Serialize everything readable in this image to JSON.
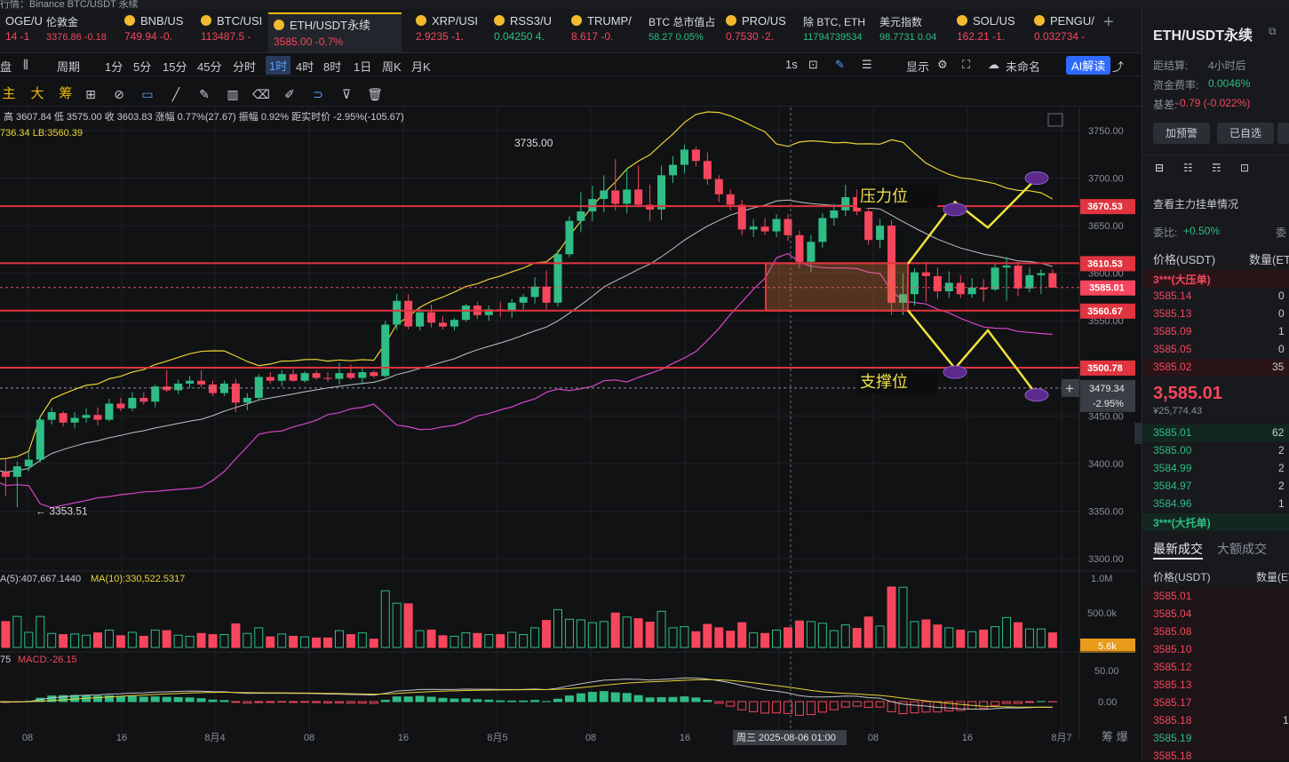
{
  "top_message": "行情：Binance BTC/USDT 永续",
  "ticker": [
    {
      "name": "OGE/U",
      "price": "14 -1",
      "dir": "dn",
      "x": 0,
      "w": 40,
      "icon": false
    },
    {
      "name": "伦敦金",
      "price": "3376.86 -0.18",
      "dir": "dn",
      "x": 46,
      "w": 80,
      "icon": false,
      "small": true
    },
    {
      "name": "BNB/US",
      "price": "749.94 -0.",
      "dir": "dn",
      "x": 134,
      "w": 80,
      "icon": true
    },
    {
      "name": "BTC/USI",
      "price": "113487.5 -",
      "dir": "dn",
      "x": 220,
      "w": 80,
      "icon": true
    },
    {
      "name": "ETH/USDT永续",
      "price": "3585.00 -0.7%",
      "dir": "dn",
      "x": 302,
      "w": 150,
      "icon": true,
      "active": true
    },
    {
      "name": "XRP/USI",
      "price": "2.9235 -1.",
      "dir": "dn",
      "x": 462,
      "w": 80,
      "icon": true
    },
    {
      "name": "RSS3/U",
      "price": "0.04250 4.",
      "dir": "up",
      "x": 550,
      "w": 80,
      "icon": true
    },
    {
      "name": "TRUMP/",
      "price": "8.617 -0.",
      "dir": "dn",
      "x": 637,
      "w": 80,
      "icon": true
    },
    {
      "name": "BTC 总市值占",
      "price": "58.27 0.05%",
      "dir": "up",
      "x": 724,
      "w": 80,
      "icon": false,
      "small": true
    },
    {
      "name": "PRO/US",
      "price": "0.7530 -2.",
      "dir": "dn",
      "x": 811,
      "w": 80,
      "icon": true
    },
    {
      "name": "除 BTC, ETH",
      "price": "11794739534",
      "dir": "up",
      "x": 898,
      "w": 80,
      "icon": false,
      "small": true
    },
    {
      "name": "美元指数",
      "price": "98.7731 0.04",
      "dir": "up",
      "x": 984,
      "w": 80,
      "icon": false,
      "small": true
    },
    {
      "name": "SOL/US",
      "price": "162.21 -1.",
      "dir": "dn",
      "x": 1071,
      "w": 80,
      "icon": true
    },
    {
      "name": "PENGU/",
      "price": "0.032734 -",
      "dir": "dn",
      "x": 1158,
      "w": 80,
      "icon": true
    }
  ],
  "toolbar": {
    "items": [
      "盘",
      "周期",
      "1分",
      "5分",
      "15分",
      "45分",
      "分时",
      "1时",
      "4时",
      "8时",
      "1日",
      "周K",
      "月K"
    ],
    "selected": "1时",
    "right": [
      "1s",
      "显示",
      "未命名",
      "AI解读"
    ]
  },
  "toolbar2": {
    "labels": [
      "主",
      "大",
      "筹"
    ]
  },
  "info_line": "高 3607.84  低 3575.00  收 3603.83  涨幅 0.77%(27.67)  振幅 0.92%  距实时价 -2.95%(-105.67)",
  "bb_line": "736.34  LB:3560.39",
  "vol_line": {
    "ma5": "A(5):407,667.1440",
    "ma10": "MA(10):330,522.5317"
  },
  "macd_line": {
    "left": "75",
    "macd": "MACD:-26.15"
  },
  "chart_data": {
    "type": "candlestick",
    "symbol": "ETH/USDT永续",
    "interval": "1时",
    "ylim": [
      3268,
      3770
    ],
    "yticks": [
      3300,
      3350,
      3400,
      3450,
      3500,
      3550,
      3600,
      3650,
      3700,
      3750
    ],
    "ytick_labels": [
      "3300.00",
      "3350.00",
      "3400.00",
      "3450.00",
      "3500.00",
      "3550.00",
      "3600.00",
      "3650.00",
      "3700.00",
      "3750.00"
    ],
    "x_labels": [
      "08",
      "16",
      "8月4",
      "08",
      "16",
      "8月5",
      "08",
      "16",
      "周三 2025-08-06 01:00",
      "08",
      "16",
      "8月7"
    ],
    "hlines": [
      {
        "value": 3670.53,
        "label": "3670.53"
      },
      {
        "value": 3610.53,
        "label": "3610.53"
      },
      {
        "value": 3560.67,
        "label": "3560.67"
      },
      {
        "value": 3500.78,
        "label": "3500.78"
      }
    ],
    "current_price": {
      "value": 3585.01,
      "label": "3585.01"
    },
    "crosshair": {
      "value": 3479.34,
      "label": "3479.34",
      "pct": "-2.95%"
    },
    "annotations": {
      "high": "3735.00",
      "low": "3353.51",
      "resistance": "压力位",
      "support": "支撑位"
    },
    "ohlc": [
      [
        3421,
        3423,
        3386,
        3396
      ],
      [
        3394,
        3411,
        3384,
        3391
      ],
      [
        3391,
        3405,
        3366,
        3386
      ],
      [
        3386,
        3402,
        3354,
        3397
      ],
      [
        3397,
        3412,
        3392,
        3404
      ],
      [
        3404,
        3449,
        3401,
        3446
      ],
      [
        3446,
        3459,
        3441,
        3454
      ],
      [
        3453,
        3455,
        3439,
        3443
      ],
      [
        3443,
        3454,
        3437,
        3448
      ],
      [
        3448,
        3458,
        3443,
        3451
      ],
      [
        3451,
        3459,
        3440,
        3446
      ],
      [
        3446,
        3468,
        3444,
        3463
      ],
      [
        3463,
        3469,
        3455,
        3458
      ],
      [
        3458,
        3475,
        3455,
        3469
      ],
      [
        3469,
        3475,
        3462,
        3465
      ],
      [
        3465,
        3483,
        3459,
        3481
      ],
      [
        3481,
        3498,
        3475,
        3477
      ],
      [
        3477,
        3488,
        3473,
        3484
      ],
      [
        3484,
        3492,
        3479,
        3487
      ],
      [
        3487,
        3498,
        3480,
        3483
      ],
      [
        3483,
        3487,
        3471,
        3474
      ],
      [
        3474,
        3487,
        3471,
        3484
      ],
      [
        3484,
        3489,
        3454,
        3464
      ],
      [
        3464,
        3474,
        3456,
        3469
      ],
      [
        3469,
        3494,
        3466,
        3491
      ],
      [
        3491,
        3496,
        3484,
        3487
      ],
      [
        3487,
        3498,
        3481,
        3494
      ],
      [
        3494,
        3499,
        3486,
        3487
      ],
      [
        3487,
        3497,
        3485,
        3495
      ],
      [
        3495,
        3498,
        3488,
        3490
      ],
      [
        3490,
        3496,
        3486,
        3489
      ],
      [
        3489,
        3506,
        3483,
        3495
      ],
      [
        3495,
        3504,
        3488,
        3490
      ],
      [
        3490,
        3502,
        3483,
        3496
      ],
      [
        3496,
        3498,
        3490,
        3492
      ],
      [
        3492,
        3550,
        3490,
        3546
      ],
      [
        3546,
        3578,
        3540,
        3571
      ],
      [
        3571,
        3578,
        3541,
        3544
      ],
      [
        3544,
        3563,
        3540,
        3559
      ],
      [
        3559,
        3567,
        3543,
        3548
      ],
      [
        3548,
        3555,
        3541,
        3544
      ],
      [
        3544,
        3553,
        3540,
        3551
      ],
      [
        3551,
        3568,
        3549,
        3566
      ],
      [
        3566,
        3570,
        3552,
        3556
      ],
      [
        3556,
        3566,
        3550,
        3562
      ],
      [
        3562,
        3570,
        3554,
        3560
      ],
      [
        3560,
        3573,
        3553,
        3569
      ],
      [
        3569,
        3578,
        3562,
        3575
      ],
      [
        3575,
        3596,
        3568,
        3586
      ],
      [
        3586,
        3603,
        3562,
        3569
      ],
      [
        3569,
        3625,
        3565,
        3620
      ],
      [
        3620,
        3660,
        3617,
        3655
      ],
      [
        3655,
        3685,
        3643,
        3665
      ],
      [
        3665,
        3692,
        3655,
        3678
      ],
      [
        3678,
        3703,
        3664,
        3687
      ],
      [
        3687,
        3720,
        3666,
        3673
      ],
      [
        3673,
        3710,
        3663,
        3688
      ],
      [
        3688,
        3713,
        3669,
        3672
      ],
      [
        3672,
        3693,
        3655,
        3667
      ],
      [
        3667,
        3713,
        3656,
        3703
      ],
      [
        3703,
        3723,
        3695,
        3714
      ],
      [
        3714,
        3735,
        3705,
        3730
      ],
      [
        3730,
        3733,
        3712,
        3718
      ],
      [
        3718,
        3727,
        3693,
        3699
      ],
      [
        3699,
        3703,
        3675,
        3683
      ],
      [
        3683,
        3688,
        3666,
        3672
      ],
      [
        3672,
        3677,
        3640,
        3646
      ],
      [
        3646,
        3657,
        3638,
        3649
      ],
      [
        3649,
        3658,
        3640,
        3644
      ],
      [
        3644,
        3662,
        3638,
        3657
      ],
      [
        3657,
        3662,
        3634,
        3640
      ],
      [
        3640,
        3645,
        3605,
        3612
      ],
      [
        3612,
        3640,
        3601,
        3633
      ],
      [
        3633,
        3663,
        3627,
        3658
      ],
      [
        3658,
        3673,
        3650,
        3666
      ],
      [
        3666,
        3693,
        3660,
        3680
      ],
      [
        3680,
        3688,
        3661,
        3665
      ],
      [
        3665,
        3677,
        3630,
        3635
      ],
      [
        3635,
        3657,
        3626,
        3650
      ],
      [
        3650,
        3656,
        3556,
        3569
      ],
      [
        3569,
        3600,
        3556,
        3578
      ],
      [
        3578,
        3605,
        3566,
        3601
      ],
      [
        3601,
        3612,
        3570,
        3597
      ],
      [
        3597,
        3606,
        3573,
        3581
      ],
      [
        3581,
        3602,
        3574,
        3590
      ],
      [
        3590,
        3598,
        3574,
        3578
      ],
      [
        3578,
        3595,
        3574,
        3585
      ],
      [
        3585,
        3594,
        3570,
        3583
      ],
      [
        3583,
        3611,
        3581,
        3606
      ],
      [
        3606,
        3617,
        3571,
        3608
      ],
      [
        3608,
        3613,
        3576,
        3584
      ],
      [
        3584,
        3606,
        3580,
        3598
      ],
      [
        3598,
        3604,
        3578,
        3600
      ],
      [
        3600,
        3604,
        3585,
        3585
      ]
    ],
    "volume_ylim": [
      0,
      1100000
    ],
    "volume_ticks": [
      "1.0M",
      "500.0k"
    ],
    "volume_label": "5.6k",
    "macd_ticks": [
      "50.00",
      "0.00"
    ]
  },
  "right_panel": {
    "title": "ETH/USDT永续",
    "settle_label": "距结算:",
    "settle_value": "4小时后",
    "funding_label": "资金费率:",
    "funding_value": "0.0046%",
    "basis_label": "基差:",
    "basis_value": "-0.79 (-0.022%)",
    "btn_alert": "加预警",
    "btn_selected": "已自选",
    "book_title": "查看主力挂单情况",
    "ratio_label": "委比:",
    "ratio_value": "+0.50%",
    "ratio_extra": "委",
    "col_price": "价格(USDT)",
    "col_qty": "数量(ET",
    "ask_big": "3***(大压单)",
    "asks": [
      [
        "3585.14",
        "0"
      ],
      [
        "3585.13",
        "0"
      ],
      [
        "3585.09",
        "1"
      ],
      [
        "3585.05",
        "0"
      ],
      [
        "3585.02",
        "35"
      ]
    ],
    "last_price": "3,585.01",
    "last_cny": "¥25,774.43",
    "bids": [
      [
        "3585.01",
        "62"
      ],
      [
        "3585.00",
        "2"
      ],
      [
        "3584.99",
        "2"
      ],
      [
        "3584.97",
        "2"
      ],
      [
        "3584.96",
        "1"
      ]
    ],
    "bid_big": "3***(大托单)",
    "tab_latest": "最新成交",
    "tab_large": "大额成交",
    "trades_col_price": "价格(USDT)",
    "trades_col_qty": "数量(ET",
    "trades": [
      [
        "3585.01",
        "dn",
        ""
      ],
      [
        "3585.04",
        "dn",
        ""
      ],
      [
        "3585.08",
        "dn",
        ""
      ],
      [
        "3585.10",
        "dn",
        ""
      ],
      [
        "3585.12",
        "dn",
        ""
      ],
      [
        "3585.13",
        "dn",
        ""
      ],
      [
        "3585.17",
        "dn",
        ""
      ],
      [
        "3585.18",
        "dn",
        "1"
      ],
      [
        "3585.19",
        "up",
        ""
      ],
      [
        "3585.18",
        "dn",
        ""
      ]
    ]
  }
}
